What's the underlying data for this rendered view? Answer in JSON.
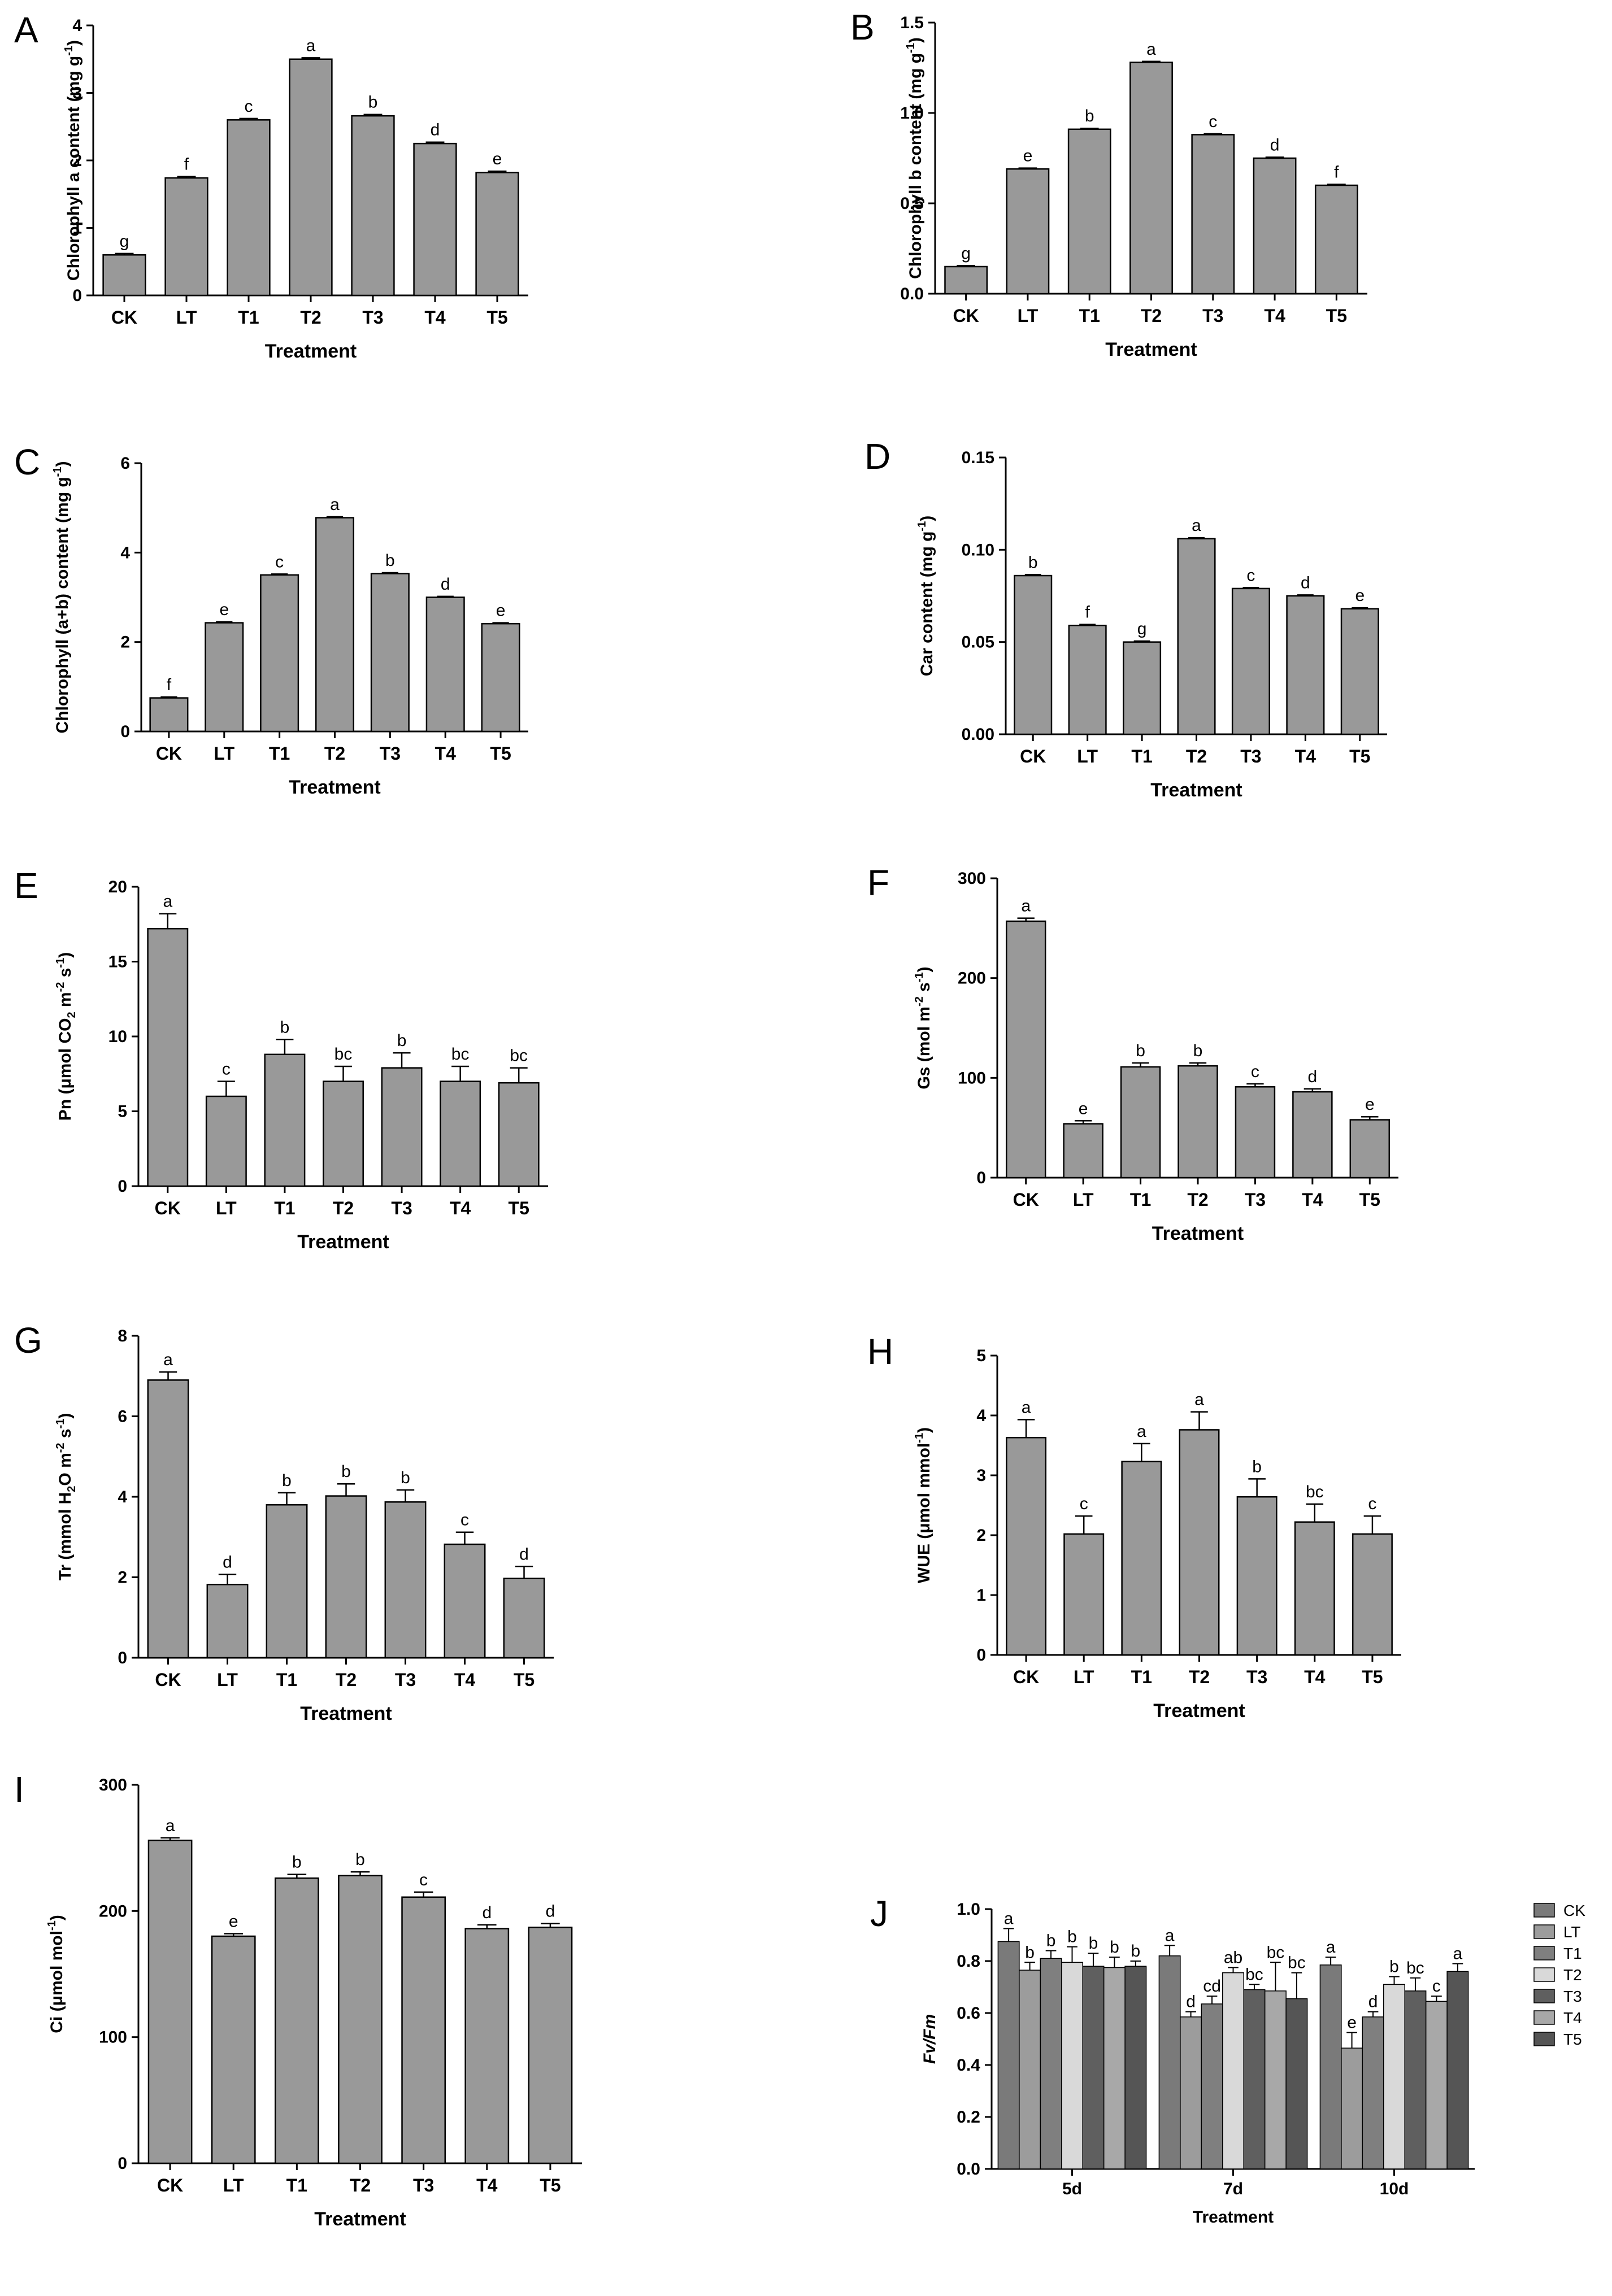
{
  "chart_data": [
    {
      "panel": "A",
      "type": "bar",
      "categories": [
        "CK",
        "LT",
        "T1",
        "T2",
        "T3",
        "T4",
        "T5"
      ],
      "values": [
        0.6,
        1.74,
        2.6,
        3.5,
        2.66,
        2.25,
        1.82
      ],
      "errors": [
        0.02,
        0.02,
        0.02,
        0.02,
        0.02,
        0.02,
        0.02
      ],
      "letters": [
        "g",
        "f",
        "c",
        "a",
        "b",
        "d",
        "e"
      ],
      "ylim": [
        0,
        4
      ],
      "yticks": [
        "0",
        "1",
        "2",
        "3",
        "4"
      ],
      "ylabel": "Chlorophyll a content (mg g",
      "ylabel_sup": "-1",
      "ylabel_end": ")",
      "xlabel": "Treatment"
    },
    {
      "panel": "B",
      "type": "bar",
      "categories": [
        "CK",
        "LT",
        "T1",
        "T2",
        "T3",
        "T4",
        "T5"
      ],
      "values": [
        0.15,
        0.69,
        0.91,
        1.28,
        0.88,
        0.75,
        0.6
      ],
      "errors": [
        0.005,
        0.005,
        0.005,
        0.005,
        0.005,
        0.005,
        0.005
      ],
      "letters": [
        "g",
        "e",
        "b",
        "a",
        "c",
        "d",
        "f"
      ],
      "ylim": [
        0,
        1.5
      ],
      "yticks": [
        "0.0",
        "0.5",
        "1.0",
        "1.5"
      ],
      "ylabel": "Chlorophyll b content (mg g",
      "ylabel_sup": "-1",
      "ylabel_end": ")",
      "xlabel": "Treatment"
    },
    {
      "panel": "C",
      "type": "bar",
      "categories": [
        "CK",
        "LT",
        "T1",
        "T2",
        "T3",
        "T4",
        "T5"
      ],
      "values": [
        0.75,
        2.43,
        3.5,
        4.78,
        3.53,
        3.0,
        2.41
      ],
      "errors": [
        0.02,
        0.02,
        0.02,
        0.02,
        0.02,
        0.02,
        0.02
      ],
      "letters": [
        "f",
        "e",
        "c",
        "a",
        "b",
        "d",
        "e"
      ],
      "ylim": [
        0,
        6
      ],
      "yticks": [
        "0",
        "2",
        "4",
        "6"
      ],
      "ylabel": "Chlorophyll (a+b) content (mg g",
      "ylabel_sup": "-1",
      "ylabel_end": ")",
      "xlabel": "Treatment"
    },
    {
      "panel": "D",
      "type": "bar",
      "categories": [
        "CK",
        "LT",
        "T1",
        "T2",
        "T3",
        "T4",
        "T5"
      ],
      "values": [
        0.086,
        0.059,
        0.05,
        0.106,
        0.079,
        0.075,
        0.068
      ],
      "errors": [
        0.0005,
        0.0005,
        0.0005,
        0.0005,
        0.0005,
        0.0005,
        0.0005
      ],
      "letters": [
        "b",
        "f",
        "g",
        "a",
        "c",
        "d",
        "e"
      ],
      "ylim": [
        0,
        0.15
      ],
      "yticks": [
        "0.00",
        "0.05",
        "0.10",
        "0.15"
      ],
      "ylabel": "Car content (mg g",
      "ylabel_sup": "-1",
      "ylabel_end": ")",
      "xlabel": "Treatment"
    },
    {
      "panel": "E",
      "type": "bar",
      "categories": [
        "CK",
        "LT",
        "T1",
        "T2",
        "T3",
        "T4",
        "T5"
      ],
      "values": [
        17.2,
        6.0,
        8.8,
        7.0,
        7.9,
        7.0,
        6.9
      ],
      "errors": [
        1.0,
        1.0,
        1.0,
        1.0,
        1.0,
        1.0,
        1.0
      ],
      "letters": [
        "a",
        "c",
        "b",
        "bc",
        "b",
        "bc",
        "bc"
      ],
      "ylim": [
        0,
        20
      ],
      "yticks": [
        "0",
        "5",
        "10",
        "15",
        "20"
      ],
      "ylabel": "Pn  (μmol CO",
      "ylabel_sub": "2",
      "ylabel_mid": " m",
      "ylabel_sup": "-2",
      "ylabel_mid2": " s",
      "ylabel_sup2": "-1",
      "ylabel_end": ")",
      "xlabel": "Treatment"
    },
    {
      "panel": "F",
      "type": "bar",
      "categories": [
        "CK",
        "LT",
        "T1",
        "T2",
        "T3",
        "T4",
        "T5"
      ],
      "values": [
        257,
        54,
        111,
        112,
        91,
        86,
        58
      ],
      "errors": [
        3,
        3,
        4,
        3,
        3,
        3,
        3
      ],
      "letters": [
        "a",
        "e",
        "b",
        "b",
        "c",
        "d",
        "e"
      ],
      "ylim": [
        0,
        300
      ],
      "yticks": [
        "0",
        "100",
        "200",
        "300"
      ],
      "ylabel": "Gs  (mol m",
      "ylabel_sup": "-2",
      "ylabel_mid2": " s",
      "ylabel_sup2": "-1",
      "ylabel_end": ")",
      "xlabel": "Treatment"
    },
    {
      "panel": "G",
      "type": "bar",
      "categories": [
        "CK",
        "LT",
        "T1",
        "T2",
        "T3",
        "T4",
        "T5"
      ],
      "values": [
        6.9,
        1.82,
        3.8,
        4.02,
        3.87,
        2.82,
        1.97
      ],
      "errors": [
        0.2,
        0.25,
        0.3,
        0.3,
        0.3,
        0.3,
        0.3
      ],
      "letters": [
        "a",
        "d",
        "b",
        "b",
        "b",
        "c",
        "d"
      ],
      "ylim": [
        0,
        8
      ],
      "yticks": [
        "0",
        "2",
        "4",
        "6",
        "8"
      ],
      "ylabel": "Tr  (mmol H",
      "ylabel_sub": "2",
      "ylabel_mid": "O m",
      "ylabel_sup": "-2",
      "ylabel_mid2": " s",
      "ylabel_sup2": "-1",
      "ylabel_end": ")",
      "xlabel": "Treatment"
    },
    {
      "panel": "H",
      "type": "bar",
      "categories": [
        "CK",
        "LT",
        "T1",
        "T2",
        "T3",
        "T4",
        "T5"
      ],
      "values": [
        3.63,
        2.02,
        3.23,
        3.76,
        2.64,
        2.22,
        2.02
      ],
      "errors": [
        0.3,
        0.3,
        0.3,
        0.3,
        0.3,
        0.3,
        0.3
      ],
      "letters": [
        "a",
        "c",
        "a",
        "a",
        "b",
        "bc",
        "c"
      ],
      "ylim": [
        0,
        5
      ],
      "yticks": [
        "0",
        "1",
        "2",
        "3",
        "4",
        "5"
      ],
      "ylabel": "WUE  (μmol mmol",
      "ylabel_sup": "-1",
      "ylabel_end": ")",
      "xlabel": "Treatment"
    },
    {
      "panel": "I",
      "type": "bar",
      "categories": [
        "CK",
        "LT",
        "T1",
        "T2",
        "T3",
        "T4",
        "T5"
      ],
      "values": [
        256,
        180,
        226,
        228,
        211,
        186,
        187
      ],
      "errors": [
        2,
        2,
        3,
        3,
        4,
        3,
        3
      ],
      "letters": [
        "a",
        "e",
        "b",
        "b",
        "c",
        "d",
        "d"
      ],
      "ylim": [
        0,
        300
      ],
      "yticks": [
        "0",
        "100",
        "200",
        "300"
      ],
      "ylabel": "Ci  (μmol mol",
      "ylabel_sup": "-1",
      "ylabel_end": ")",
      "xlabel": "Treatment"
    },
    {
      "panel": "J",
      "type": "bar",
      "categories": [
        "5d",
        "7d",
        "10d"
      ],
      "series": [
        {
          "name": "CK",
          "color": "#7a7a7a",
          "values": [
            0.875,
            0.82,
            0.785
          ],
          "errors": [
            0.05,
            0.04,
            0.03
          ],
          "letters": [
            "a",
            "a",
            "a"
          ]
        },
        {
          "name": "LT",
          "color": "#9c9c9c",
          "values": [
            0.765,
            0.585,
            0.465
          ],
          "errors": [
            0.03,
            0.02,
            0.06
          ],
          "letters": [
            "b",
            "d",
            "e"
          ]
        },
        {
          "name": "T1",
          "color": "#7f7f7f",
          "values": [
            0.81,
            0.635,
            0.585
          ],
          "errors": [
            0.03,
            0.03,
            0.02
          ],
          "letters": [
            "b",
            "cd",
            "d"
          ]
        },
        {
          "name": "T2",
          "color": "#d9d9d9",
          "values": [
            0.795,
            0.755,
            0.71
          ],
          "errors": [
            0.06,
            0.02,
            0.03
          ],
          "letters": [
            "b",
            "ab",
            "b"
          ]
        },
        {
          "name": "T3",
          "color": "#5f5f5f",
          "values": [
            0.78,
            0.69,
            0.685
          ],
          "errors": [
            0.05,
            0.02,
            0.05
          ],
          "letters": [
            "b",
            "bc",
            "bc"
          ]
        },
        {
          "name": "T4",
          "color": "#a8a8a8",
          "values": [
            0.775,
            0.685,
            0.645
          ],
          "errors": [
            0.04,
            0.11,
            0.02
          ],
          "letters": [
            "b",
            "bc",
            "c"
          ]
        },
        {
          "name": "T5",
          "color": "#555555",
          "values": [
            0.78,
            0.655,
            0.76
          ],
          "errors": [
            0.02,
            0.1,
            0.03
          ],
          "letters": [
            "b",
            "bc",
            "a"
          ]
        }
      ],
      "ylim": [
        0,
        1.0
      ],
      "yticks": [
        "0.0",
        "0.2",
        "0.4",
        "0.6",
        "0.8",
        "1.0"
      ],
      "ylabel": "Fv/Fm",
      "xlabel": "Treatment"
    }
  ]
}
